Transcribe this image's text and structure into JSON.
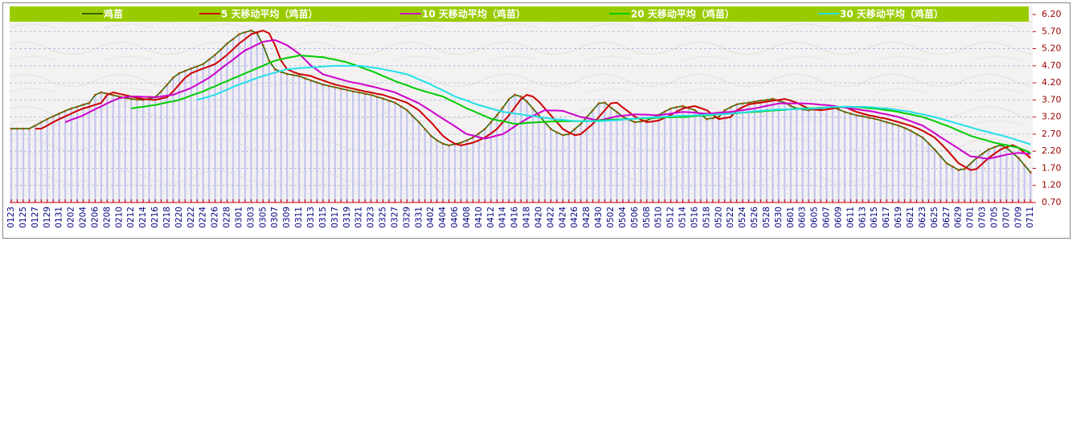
{
  "chart_data": {
    "type": "line",
    "legend": "top",
    "grid": true,
    "y_axis_side": "right",
    "bar_color": "#c8c8f0",
    "categories": [
      "0123",
      null,
      "0125",
      null,
      "0127",
      null,
      "0129",
      null,
      "0131",
      null,
      "0202",
      null,
      "0204",
      null,
      "0206",
      null,
      "0208",
      null,
      "0210",
      null,
      "0212",
      null,
      "0214",
      null,
      "0216",
      null,
      "0218",
      null,
      "0220",
      null,
      "0222",
      null,
      "0224",
      null,
      "0226",
      null,
      "0228",
      null,
      "0301",
      null,
      "0303",
      null,
      "0305",
      null,
      "0307",
      null,
      "0309",
      null,
      "0311",
      null,
      "0313",
      null,
      "0315",
      null,
      "0317",
      null,
      "0319",
      null,
      "0321",
      null,
      "0323",
      null,
      "0325",
      null,
      "0327",
      null,
      "0329",
      null,
      "0331",
      null,
      "0402",
      null,
      "0404",
      null,
      "0406",
      null,
      "0408",
      null,
      "0410",
      null,
      "0412",
      null,
      "0414",
      null,
      "0416",
      null,
      "0418",
      null,
      "0420",
      null,
      "0422",
      null,
      "0424",
      null,
      "0426",
      null,
      "0428",
      null,
      "0430",
      null,
      "0502",
      null,
      "0504",
      null,
      "0506",
      null,
      "0508",
      null,
      "0510",
      null,
      "0512",
      null,
      "0514",
      null,
      "0516",
      null,
      "0518",
      null,
      "0520",
      null,
      "0522",
      null,
      "0524",
      null,
      "0526",
      null,
      "0528",
      null,
      "0530",
      null,
      "0601",
      null,
      "0603",
      null,
      "0605",
      null,
      "0607",
      null,
      "0609",
      null,
      "0611",
      null,
      "0613",
      null,
      "0615",
      null,
      "0617",
      null,
      "0619",
      null,
      "0621",
      null,
      "0623",
      null,
      "0625",
      null,
      "0627",
      null,
      "0629",
      null,
      "0701",
      null,
      "0703",
      null,
      "0705",
      null,
      "0707",
      null,
      "0709",
      null,
      "0711"
    ],
    "ylim": [
      0.7,
      6.2
    ],
    "yticks": [
      {
        "value": 0.7,
        "label": "0.70"
      },
      {
        "value": 1.2,
        "label": "1.20"
      },
      {
        "value": 1.7,
        "label": "1.70"
      },
      {
        "value": 2.2,
        "label": "2.20"
      },
      {
        "value": 2.7,
        "label": "2.70"
      },
      {
        "value": 3.2,
        "label": "3.20"
      },
      {
        "value": 3.7,
        "label": "3.70"
      },
      {
        "value": 4.2,
        "label": "4.20"
      },
      {
        "value": 4.7,
        "label": "4.70"
      },
      {
        "value": 5.2,
        "label": "5.20"
      },
      {
        "value": 5.7,
        "label": "5.70"
      },
      {
        "value": 6.2,
        "label": "6.20"
      }
    ],
    "series": [
      {
        "name": "鸡苗",
        "color": "#336600",
        "values": [
          2.86,
          2.86,
          2.86,
          2.86,
          2.95,
          3.05,
          3.14,
          3.22,
          3.3,
          3.38,
          3.45,
          3.5,
          3.56,
          3.61,
          3.85,
          3.92,
          3.88,
          3.84,
          3.8,
          3.76,
          3.73,
          3.71,
          3.7,
          3.74,
          3.78,
          3.95,
          4.15,
          4.35,
          4.48,
          4.55,
          4.62,
          4.68,
          4.75,
          4.88,
          5.02,
          5.18,
          5.35,
          5.48,
          5.62,
          5.68,
          5.73,
          5.65,
          5.3,
          4.85,
          4.6,
          4.52,
          4.46,
          4.43,
          4.4,
          4.33,
          4.27,
          4.21,
          4.15,
          4.11,
          4.07,
          4.03,
          3.99,
          3.95,
          3.92,
          3.88,
          3.85,
          3.79,
          3.74,
          3.68,
          3.62,
          3.51,
          3.4,
          3.22,
          3.05,
          2.85,
          2.65,
          2.52,
          2.42,
          2.37,
          2.41,
          2.45,
          2.52,
          2.6,
          2.72,
          2.85,
          3.05,
          3.25,
          3.48,
          3.72,
          3.85,
          3.8,
          3.65,
          3.45,
          3.25,
          3.05,
          2.85,
          2.75,
          2.67,
          2.7,
          2.85,
          3.0,
          3.2,
          3.4,
          3.6,
          3.62,
          3.48,
          3.35,
          3.21,
          3.13,
          3.05,
          3.07,
          3.1,
          3.18,
          3.26,
          3.36,
          3.45,
          3.49,
          3.52,
          3.46,
          3.4,
          3.27,
          3.14,
          3.17,
          3.2,
          3.4,
          3.49,
          3.57,
          3.6,
          3.62,
          3.65,
          3.68,
          3.7,
          3.73,
          3.68,
          3.62,
          3.53,
          3.45,
          3.42,
          3.4,
          3.42,
          3.45,
          3.48,
          3.5,
          3.42,
          3.35,
          3.3,
          3.25,
          3.22,
          3.18,
          3.15,
          3.1,
          3.05,
          3.0,
          2.95,
          2.88,
          2.8,
          2.7,
          2.6,
          2.43,
          2.25,
          2.05,
          1.85,
          1.75,
          1.65,
          1.68,
          1.84,
          2.0,
          2.13,
          2.25,
          2.32,
          2.38,
          2.3,
          2.15,
          2.0,
          1.79,
          1.58
        ]
      },
      {
        "name": "5 天移动平均（鸡苗）",
        "color": "#cc0000",
        "values": [
          null,
          null,
          null,
          null,
          2.86,
          2.86,
          2.95,
          3.05,
          3.14,
          3.22,
          3.3,
          3.38,
          3.45,
          3.5,
          3.56,
          3.61,
          3.85,
          3.92,
          3.88,
          3.84,
          3.8,
          3.76,
          3.73,
          3.71,
          3.7,
          3.74,
          3.78,
          3.95,
          4.15,
          4.35,
          4.48,
          4.55,
          4.62,
          4.68,
          4.75,
          4.88,
          5.02,
          5.18,
          5.35,
          5.48,
          5.62,
          5.68,
          5.73,
          5.65,
          5.3,
          4.85,
          4.6,
          4.52,
          4.46,
          4.43,
          4.4,
          4.33,
          4.27,
          4.21,
          4.15,
          4.11,
          4.07,
          4.03,
          3.99,
          3.95,
          3.92,
          3.88,
          3.85,
          3.79,
          3.74,
          3.68,
          3.62,
          3.51,
          3.4,
          3.22,
          3.05,
          2.85,
          2.65,
          2.52,
          2.42,
          2.37,
          2.41,
          2.45,
          2.52,
          2.6,
          2.72,
          2.85,
          3.05,
          3.25,
          3.48,
          3.72,
          3.85,
          3.8,
          3.65,
          3.45,
          3.25,
          3.05,
          2.85,
          2.75,
          2.67,
          2.7,
          2.85,
          3.0,
          3.2,
          3.4,
          3.6,
          3.62,
          3.48,
          3.35,
          3.21,
          3.13,
          3.05,
          3.07,
          3.1,
          3.18,
          3.26,
          3.36,
          3.45,
          3.49,
          3.52,
          3.46,
          3.4,
          3.27,
          3.14,
          3.17,
          3.2,
          3.4,
          3.49,
          3.57,
          3.6,
          3.62,
          3.65,
          3.68,
          3.7,
          3.73,
          3.68,
          3.62,
          3.53,
          3.45,
          3.42,
          3.4,
          3.42,
          3.45,
          3.48,
          3.5,
          3.42,
          3.35,
          3.3,
          3.25,
          3.22,
          3.18,
          3.15,
          3.1,
          3.05,
          3.0,
          2.95,
          2.88,
          2.8,
          2.7,
          2.6,
          2.43,
          2.25,
          2.05,
          1.85,
          1.75,
          1.65,
          1.68,
          1.84,
          2.0,
          2.13,
          2.25,
          2.32,
          2.38,
          2.3,
          2.15,
          2.0
        ]
      },
      {
        "name": "10 天移动平均（鸡苗）",
        "color": "#cc00cc",
        "values": [
          null,
          null,
          null,
          null,
          null,
          null,
          null,
          null,
          null,
          3.05,
          3.12,
          3.18,
          3.25,
          3.34,
          3.43,
          3.51,
          3.6,
          3.68,
          3.75,
          3.78,
          3.8,
          3.8,
          3.79,
          3.79,
          3.78,
          3.8,
          3.83,
          3.85,
          3.92,
          3.98,
          4.05,
          4.15,
          4.25,
          4.35,
          4.48,
          4.62,
          4.75,
          4.88,
          5.02,
          5.15,
          5.23,
          5.32,
          5.4,
          5.43,
          5.45,
          5.38,
          5.3,
          5.18,
          5.05,
          4.88,
          4.7,
          4.58,
          4.45,
          4.4,
          4.35,
          4.3,
          4.25,
          4.21,
          4.18,
          4.14,
          4.1,
          4.06,
          4.01,
          3.97,
          3.92,
          3.84,
          3.76,
          3.68,
          3.6,
          3.49,
          3.38,
          3.26,
          3.15,
          3.04,
          2.93,
          2.81,
          2.7,
          2.66,
          2.61,
          2.57,
          2.61,
          2.66,
          2.7,
          2.81,
          2.93,
          3.04,
          3.15,
          3.23,
          3.32,
          3.4,
          3.39,
          3.39,
          3.38,
          3.32,
          3.26,
          3.2,
          3.17,
          3.13,
          3.1,
          3.14,
          3.18,
          3.22,
          3.24,
          3.26,
          3.28,
          3.27,
          3.27,
          3.26,
          3.25,
          3.28,
          3.3,
          3.33,
          3.35,
          3.34,
          3.33,
          3.31,
          3.3,
          3.31,
          3.33,
          3.34,
          3.35,
          3.38,
          3.4,
          3.43,
          3.45,
          3.49,
          3.53,
          3.56,
          3.6,
          3.6,
          3.6,
          3.6,
          3.6,
          3.59,
          3.58,
          3.56,
          3.55,
          3.53,
          3.5,
          3.48,
          3.45,
          3.43,
          3.4,
          3.38,
          3.35,
          3.31,
          3.28,
          3.24,
          3.2,
          3.14,
          3.08,
          3.01,
          2.95,
          2.84,
          2.73,
          2.61,
          2.5,
          2.39,
          2.28,
          2.16,
          2.05,
          2.03,
          2.0,
          1.98,
          2.02,
          2.06,
          2.1,
          2.13,
          2.15,
          2.14,
          2.12
        ]
      },
      {
        "name": "20 天移动平均（鸡苗）",
        "color": "#00cc00",
        "values": [
          null,
          null,
          null,
          null,
          null,
          null,
          null,
          null,
          null,
          null,
          null,
          null,
          null,
          null,
          null,
          null,
          null,
          null,
          null,
          null,
          3.45,
          3.48,
          3.5,
          3.53,
          3.55,
          3.59,
          3.63,
          3.66,
          3.7,
          3.76,
          3.83,
          3.89,
          3.95,
          4.03,
          4.1,
          4.18,
          4.25,
          4.33,
          4.4,
          4.48,
          4.55,
          4.63,
          4.7,
          4.78,
          4.85,
          4.89,
          4.93,
          4.96,
          5.0,
          4.99,
          4.98,
          4.96,
          4.95,
          4.91,
          4.88,
          4.84,
          4.8,
          4.74,
          4.68,
          4.61,
          4.55,
          4.48,
          4.4,
          4.33,
          4.25,
          4.19,
          4.13,
          4.06,
          4.0,
          3.95,
          3.9,
          3.85,
          3.8,
          3.71,
          3.63,
          3.54,
          3.45,
          3.38,
          3.3,
          3.23,
          3.15,
          3.11,
          3.08,
          3.04,
          3.0,
          3.01,
          3.03,
          3.04,
          3.05,
          3.06,
          3.07,
          3.07,
          3.08,
          3.08,
          3.08,
          3.08,
          3.08,
          3.09,
          3.1,
          3.11,
          3.12,
          3.13,
          3.13,
          3.14,
          3.15,
          3.16,
          3.17,
          3.17,
          3.18,
          3.19,
          3.19,
          3.2,
          3.2,
          3.21,
          3.23,
          3.24,
          3.25,
          3.26,
          3.28,
          3.29,
          3.3,
          3.31,
          3.33,
          3.34,
          3.35,
          3.36,
          3.38,
          3.39,
          3.4,
          3.41,
          3.43,
          3.44,
          3.45,
          3.46,
          3.46,
          3.47,
          3.48,
          3.49,
          3.49,
          3.5,
          3.5,
          3.49,
          3.48,
          3.46,
          3.45,
          3.43,
          3.4,
          3.38,
          3.35,
          3.31,
          3.28,
          3.24,
          3.2,
          3.14,
          3.08,
          3.01,
          2.95,
          2.88,
          2.8,
          2.73,
          2.65,
          2.6,
          2.55,
          2.5,
          2.45,
          2.41,
          2.38,
          2.34,
          2.3,
          2.23,
          2.15
        ]
      },
      {
        "name": "30 天移动平均（鸡苗）",
        "color": "#22e0e8",
        "values": [
          null,
          null,
          null,
          null,
          null,
          null,
          null,
          null,
          null,
          null,
          null,
          null,
          null,
          null,
          null,
          null,
          null,
          null,
          null,
          null,
          null,
          null,
          null,
          null,
          null,
          null,
          null,
          null,
          null,
          null,
          null,
          3.7,
          3.75,
          3.8,
          3.85,
          3.93,
          4.0,
          4.08,
          4.15,
          4.21,
          4.28,
          4.34,
          4.4,
          4.45,
          4.5,
          4.55,
          4.6,
          4.61,
          4.63,
          4.64,
          4.65,
          4.66,
          4.68,
          4.69,
          4.7,
          4.7,
          4.7,
          4.7,
          4.7,
          4.68,
          4.65,
          4.63,
          4.6,
          4.56,
          4.53,
          4.49,
          4.45,
          4.38,
          4.3,
          4.23,
          4.15,
          4.06,
          3.98,
          3.89,
          3.8,
          3.74,
          3.68,
          3.61,
          3.55,
          3.5,
          3.45,
          3.4,
          3.35,
          3.33,
          3.3,
          3.28,
          3.25,
          3.23,
          3.2,
          3.18,
          3.15,
          3.13,
          3.12,
          3.1,
          3.08,
          3.08,
          3.08,
          3.08,
          3.08,
          3.09,
          3.1,
          3.11,
          3.12,
          3.14,
          3.15,
          3.17,
          3.18,
          3.19,
          3.2,
          3.21,
          3.22,
          3.23,
          3.24,
          3.24,
          3.25,
          3.26,
          3.27,
          3.27,
          3.28,
          3.29,
          3.3,
          3.32,
          3.33,
          3.35,
          3.37,
          3.38,
          3.4,
          3.41,
          3.42,
          3.42,
          3.43,
          3.43,
          3.44,
          3.44,
          3.45,
          3.46,
          3.48,
          3.49,
          3.5,
          3.5,
          3.5,
          3.5,
          3.5,
          3.49,
          3.48,
          3.46,
          3.45,
          3.43,
          3.4,
          3.38,
          3.35,
          3.31,
          3.28,
          3.24,
          3.2,
          3.15,
          3.1,
          3.05,
          3.0,
          2.95,
          2.9,
          2.85,
          2.8,
          2.76,
          2.71,
          2.67,
          2.62,
          2.57,
          2.51,
          2.46,
          2.4
        ]
      }
    ]
  }
}
